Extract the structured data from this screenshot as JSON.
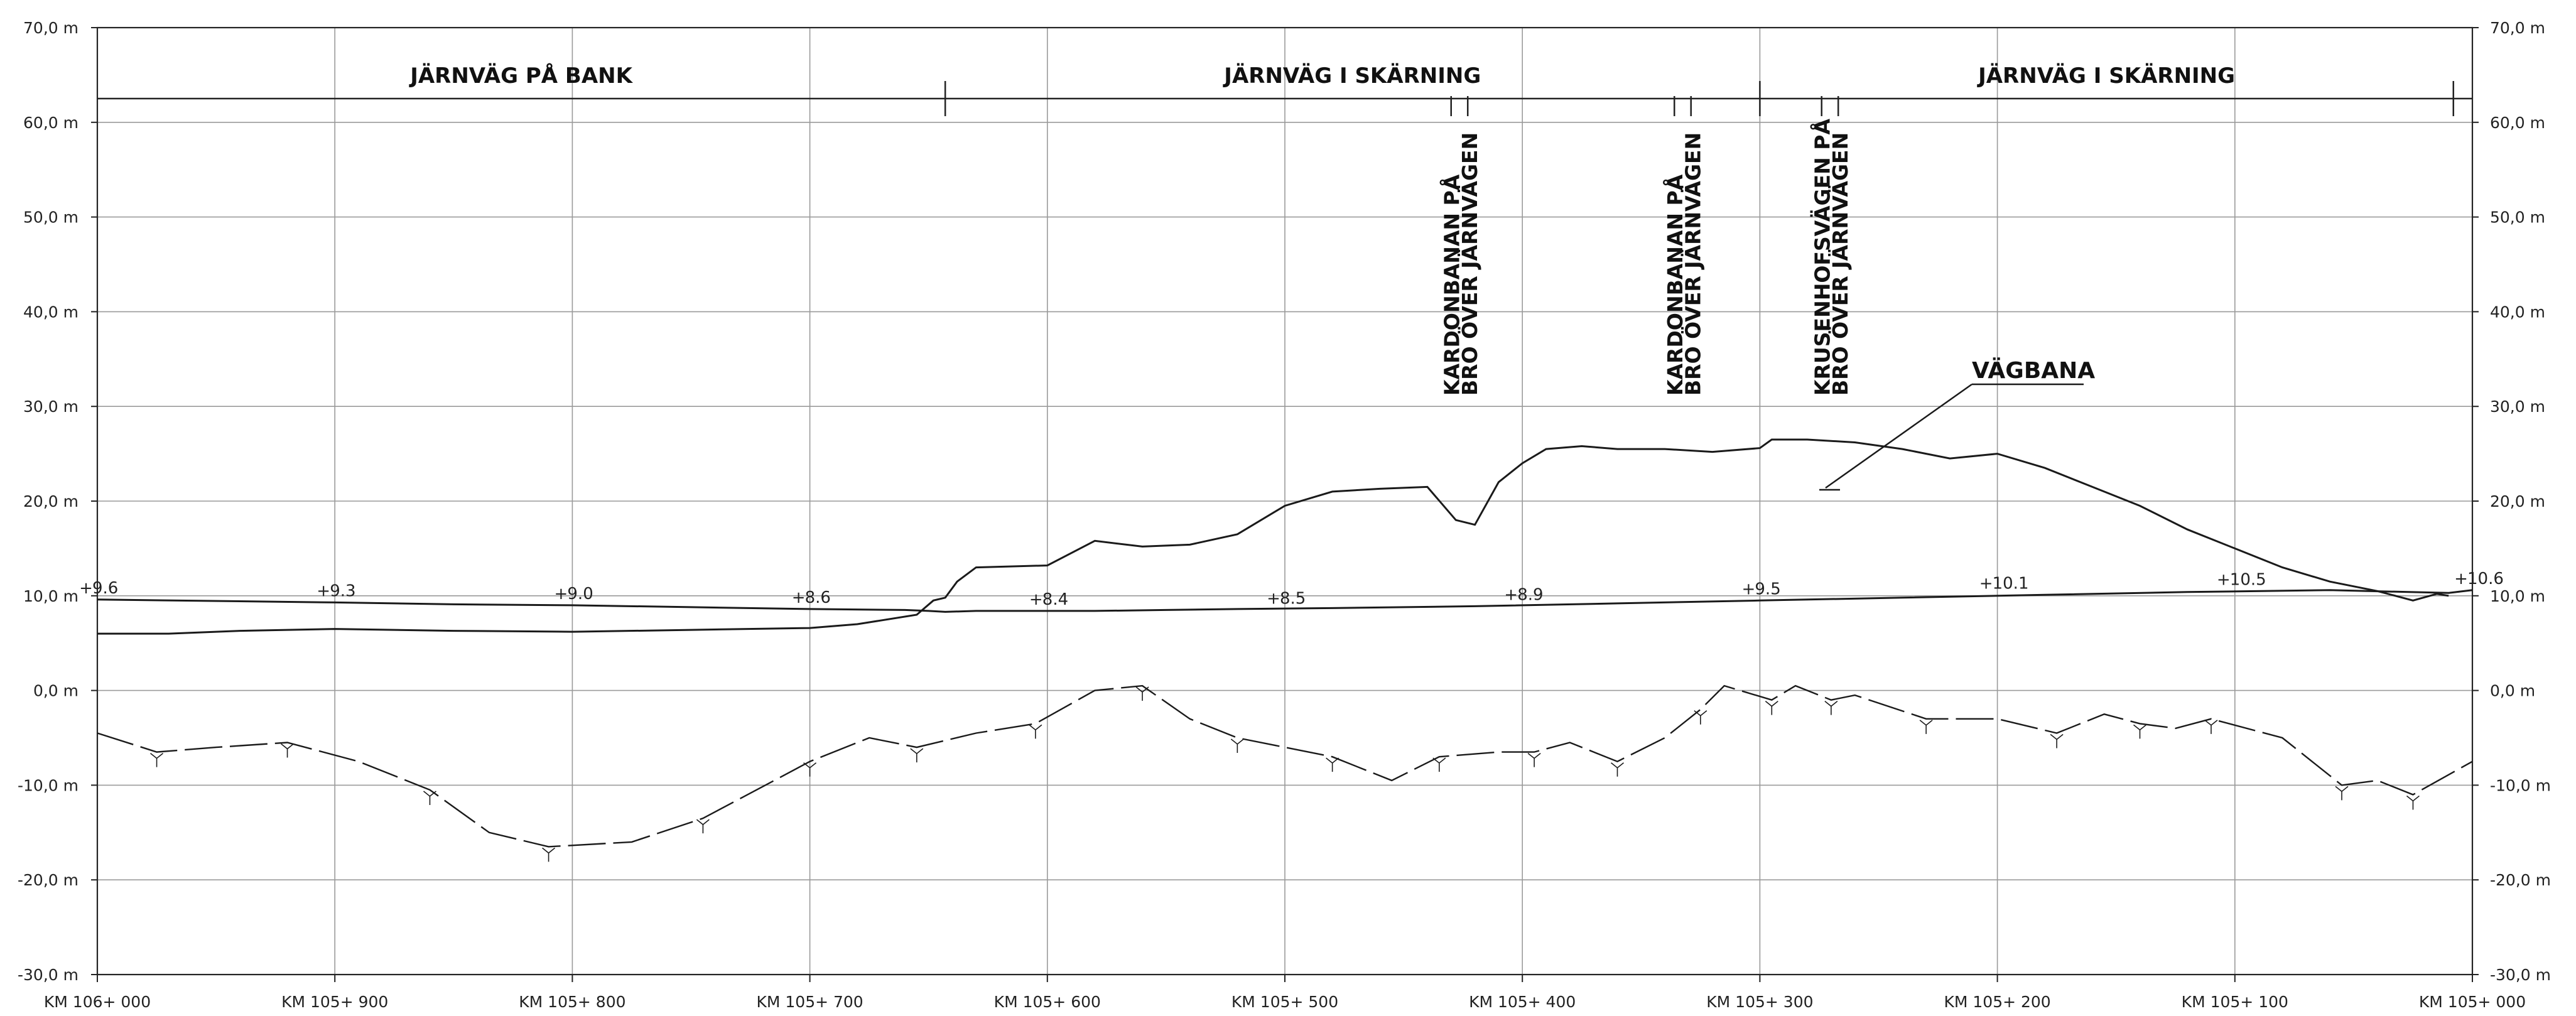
{
  "chart_data": {
    "type": "line",
    "x_axis": {
      "ticks": [
        "KM 106+ 000",
        "KM 105+ 900",
        "KM 105+ 800",
        "KM 105+ 700",
        "KM 105+ 600",
        "KM 105+ 500",
        "KM 105+ 400",
        "KM 105+ 300",
        "KM 105+ 200",
        "KM 105+ 100",
        "KM 105+ 000"
      ],
      "range": [
        0,
        1000
      ]
    },
    "y_axis": {
      "ticks": [
        "70,0 m",
        "60,0 m",
        "50,0 m",
        "40,0 m",
        "30,0 m",
        "20,0 m",
        "10,0 m",
        "0,0 m",
        "-10,0 m",
        "-20,0 m",
        "-30,0 m"
      ],
      "range": [
        -30,
        70
      ]
    },
    "grid": true,
    "sections": [
      {
        "label": "JÄRNVÄG PÅ BANK",
        "from": 0,
        "to": 357
      },
      {
        "label": "JÄRNVÄG I SKÄRNING",
        "from": 357,
        "to": 700
      },
      {
        "label": "JÄRNVÄG I SKÄRNING",
        "from": 700,
        "to": 992
      }
    ],
    "structures": [
      {
        "label1": "KARDONBANAN PÅ",
        "label2": "BRO ÖVER JÄRNVÄGEN",
        "from": 570,
        "to": 577
      },
      {
        "label1": "KARDONBANAN PÅ",
        "label2": "BRO ÖVER JÄRNVÄGEN",
        "from": 664,
        "to": 671
      },
      {
        "label1": "KRUSENHOFSVÄGEN PÅ",
        "label2": "BRO ÖVER JÄRNVÄGEN",
        "from": 726,
        "to": 733
      }
    ],
    "callout": {
      "label": "VÄGBANA"
    },
    "level_points": [
      {
        "x": 0,
        "y": 9.6,
        "label": "9.6"
      },
      {
        "x": 100,
        "y": 9.3,
        "label": "9.3"
      },
      {
        "x": 200,
        "y": 9.0,
        "label": "9.0"
      },
      {
        "x": 300,
        "y": 8.6,
        "label": "8.6"
      },
      {
        "x": 400,
        "y": 8.4,
        "label": "8.4"
      },
      {
        "x": 500,
        "y": 8.5,
        "label": "8.5"
      },
      {
        "x": 600,
        "y": 8.9,
        "label": "8.9"
      },
      {
        "x": 700,
        "y": 9.5,
        "label": "9.5"
      },
      {
        "x": 800,
        "y": 10.1,
        "label": "10.1"
      },
      {
        "x": 900,
        "y": 10.5,
        "label": "10.5"
      },
      {
        "x": 1000,
        "y": 10.6,
        "label": "10.6"
      }
    ],
    "series": [
      {
        "style": "solid",
        "x": [
          0,
          100,
          150,
          200,
          250,
          300,
          340,
          350,
          357,
          370,
          390,
          420,
          450,
          480,
          520,
          580,
          640,
          700,
          760,
          820,
          880,
          940,
          990,
          1000
        ],
        "y": [
          9.6,
          9.3,
          9.1,
          9.0,
          8.8,
          8.6,
          8.5,
          8.4,
          8.3,
          8.4,
          8.4,
          8.4,
          8.5,
          8.6,
          8.7,
          8.9,
          9.2,
          9.5,
          9.8,
          10.1,
          10.4,
          10.6,
          10.3,
          10.6
        ]
      },
      {
        "style": "solid",
        "x": [
          0,
          30,
          60,
          100,
          150,
          200,
          250,
          300,
          320,
          345,
          352,
          357,
          362,
          370,
          400,
          420,
          440,
          460,
          480,
          500,
          520,
          540,
          560,
          572,
          580,
          590,
          600,
          610,
          625,
          640,
          660,
          680,
          700,
          705,
          720,
          740,
          760,
          780,
          800,
          820,
          840,
          860,
          880,
          900,
          920,
          940,
          960,
          975,
          985,
          990
        ],
        "y": [
          6.0,
          6.0,
          6.3,
          6.5,
          6.3,
          6.2,
          6.4,
          6.6,
          7.0,
          8.0,
          9.5,
          9.8,
          11.5,
          13.0,
          13.2,
          15.8,
          15.2,
          15.4,
          16.5,
          19.5,
          21.0,
          21.3,
          21.5,
          18.0,
          17.5,
          22.0,
          24.0,
          25.5,
          25.8,
          25.5,
          25.5,
          25.2,
          25.6,
          26.5,
          26.5,
          26.2,
          25.5,
          24.5,
          25.0,
          23.5,
          21.5,
          19.5,
          17.0,
          15.0,
          13.0,
          11.5,
          10.5,
          9.5,
          10.2,
          10.0
        ]
      },
      {
        "style": "dashed",
        "x": [
          0,
          25,
          50,
          80,
          110,
          140,
          165,
          190,
          225,
          255,
          285,
          300,
          325,
          345,
          370,
          395,
          420,
          440,
          460,
          480,
          500,
          520,
          545,
          565,
          590,
          605,
          620,
          640,
          660,
          675,
          685,
          705,
          715,
          730,
          740,
          770,
          800,
          825,
          845,
          860,
          875,
          890,
          920,
          945,
          960,
          975,
          1000
        ],
        "y": [
          -4.5,
          -6.5,
          -6.0,
          -5.5,
          -7.5,
          -10.5,
          -15.0,
          -16.5,
          -16.0,
          -13.5,
          -9.5,
          -7.5,
          -5.0,
          -6.0,
          -4.5,
          -3.5,
          0.0,
          0.5,
          -3.0,
          -5.0,
          -6.0,
          -7.0,
          -9.5,
          -7.0,
          -6.5,
          -6.5,
          -5.5,
          -7.5,
          -5.0,
          -2.0,
          0.5,
          -1.0,
          0.5,
          -1.0,
          -0.5,
          -3.0,
          -3.0,
          -4.5,
          -2.5,
          -3.5,
          -4.0,
          -3.0,
          -5.0,
          -10.0,
          -9.5,
          -11.0,
          -7.5
        ]
      }
    ]
  }
}
